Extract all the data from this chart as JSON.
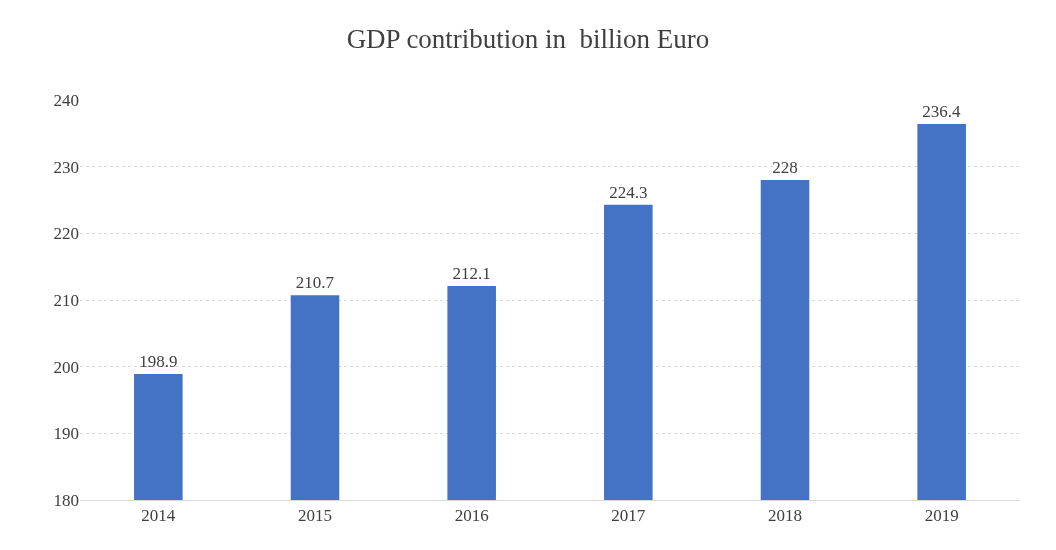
{
  "chart_data": {
    "type": "bar",
    "title": "GDP contribution in  billion Euro",
    "categories": [
      "2014",
      "2015",
      "2016",
      "2017",
      "2018",
      "2019"
    ],
    "values": [
      198.9,
      210.7,
      212.1,
      224.3,
      228,
      236.4
    ],
    "color": "#4472c4",
    "ylim": [
      180,
      240
    ],
    "yticks": [
      180,
      190,
      200,
      210,
      220,
      230,
      240
    ],
    "grid": "y",
    "data_labels": true
  }
}
